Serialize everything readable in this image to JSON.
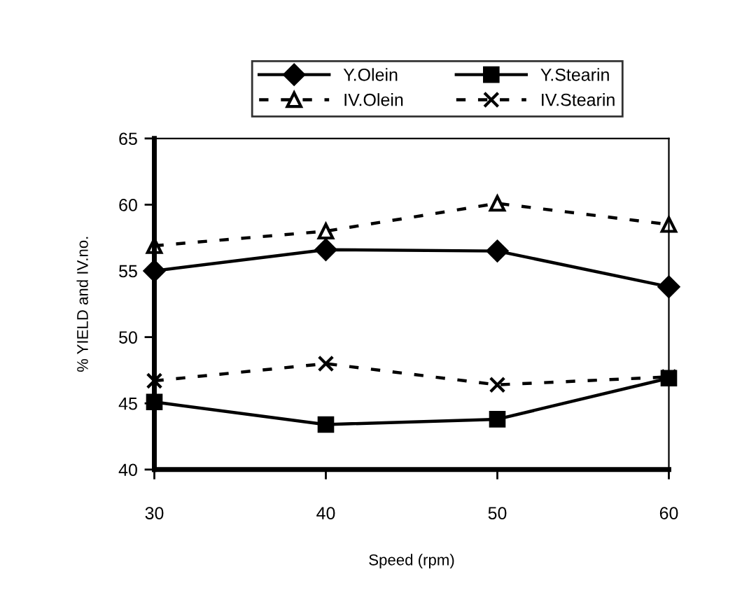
{
  "chart_data": {
    "type": "line",
    "xlabel": "Speed (rpm)",
    "ylabel": "% YIELD and IV.no.",
    "x": [
      30,
      40,
      50,
      60
    ],
    "xlim": [
      30,
      60
    ],
    "xticks": [
      30,
      40,
      50,
      60
    ],
    "ylim": [
      40,
      65
    ],
    "yticks": [
      40,
      45,
      50,
      55,
      60,
      65
    ],
    "grid": false,
    "legend": "top",
    "series": [
      {
        "name": "Y.Olein",
        "color": "#000000",
        "marker": "diamond",
        "line_style": "solid",
        "values": [
          55.0,
          56.6,
          56.5,
          53.8
        ]
      },
      {
        "name": "Y.Stearin",
        "color": "#000000",
        "marker": "square",
        "line_style": "solid",
        "values": [
          45.1,
          43.4,
          43.8,
          46.9
        ]
      },
      {
        "name": "IV.Olein",
        "color": "#000000",
        "marker": "triangle",
        "line_style": "dashed",
        "values": [
          56.9,
          58.0,
          60.1,
          58.5
        ]
      },
      {
        "name": "IV.Stearin",
        "color": "#000000",
        "marker": "cross",
        "line_style": "dashed",
        "values": [
          46.7,
          48.0,
          46.4,
          47.0
        ]
      }
    ]
  }
}
